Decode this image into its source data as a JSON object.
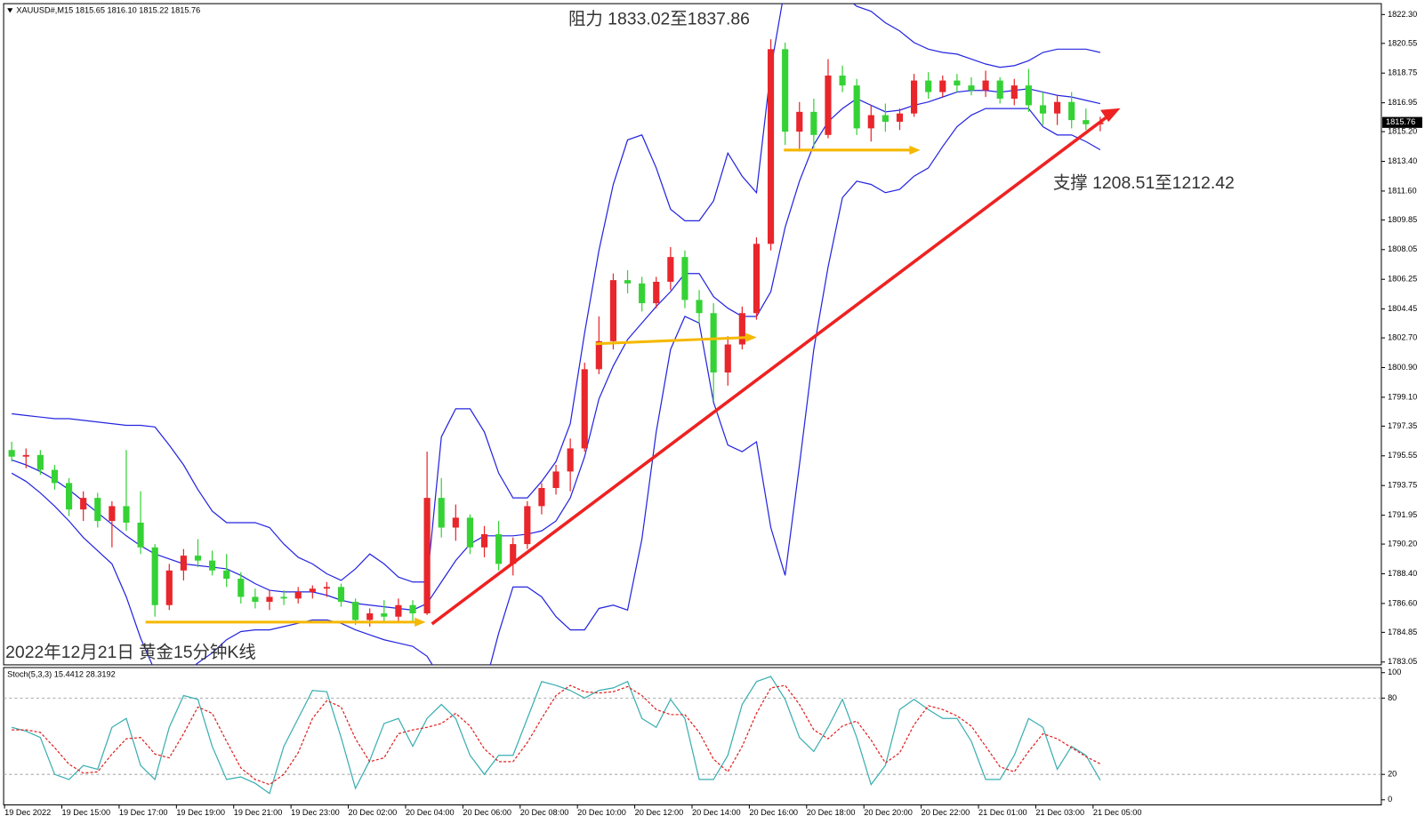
{
  "chart_data": [
    {
      "type": "candlestick",
      "header": "XAUUSD#,M15  1815.65 1816.10 1815.22 1815.76",
      "title": "2022年12月21日 黄金15分钟K线",
      "annotations": [
        "阻力 1833.02至1837.86",
        "支撑 1208.51至1212.42"
      ],
      "up_color": "#e8262b",
      "down_color": "#35d235",
      "band_color": "#2424e0",
      "ylim": [
        1782.88,
        1822.96
      ],
      "yticks": [
        {
          "value": 1822.3,
          "label": "1822.30"
        },
        1820.55,
        1818.75,
        1816.95,
        {
          "value": 1815.2,
          "label": "1815.20"
        },
        {
          "value": 1813.4,
          "label": "1813.40"
        },
        {
          "value": 1811.6,
          "label": "1811.60"
        },
        1809.85,
        1808.05,
        1806.25,
        1804.45,
        {
          "value": 1802.7,
          "label": "1802.70"
        },
        {
          "value": 1800.9,
          "label": "1800.90"
        },
        {
          "value": 1799.1,
          "label": "1799.10"
        },
        1797.35,
        1795.55,
        1793.75,
        1791.95,
        {
          "value": 1790.2,
          "label": "1790.20"
        },
        {
          "value": 1788.4,
          "label": "1788.40"
        },
        {
          "value": 1786.6,
          "label": "1786.60"
        },
        1784.85,
        1783.05
      ],
      "last_price": 1815.76,
      "categories": [
        "19 Dec 2022",
        null,
        null,
        null,
        "19 Dec 15:00",
        null,
        null,
        null,
        "19 Dec 17:00",
        null,
        null,
        null,
        "19 Dec 19:00",
        null,
        null,
        null,
        "19 Dec 21:00",
        null,
        null,
        null,
        "19 Dec 23:00",
        null,
        null,
        null,
        "20 Dec 02:00",
        null,
        null,
        null,
        "20 Dec 04:00",
        null,
        null,
        null,
        "20 Dec 06:00",
        null,
        null,
        null,
        "20 Dec 08:00",
        null,
        null,
        null,
        "20 Dec 10:00",
        null,
        null,
        null,
        "20 Dec 12:00",
        null,
        null,
        null,
        "20 Dec 14:00",
        null,
        null,
        null,
        "20 Dec 16:00",
        null,
        null,
        null,
        "20 Dec 18:00",
        null,
        null,
        null,
        "20 Dec 20:00",
        null,
        null,
        null,
        "20 Dec 22:00",
        null,
        null,
        null,
        "21 Dec 01:00",
        null,
        null,
        null,
        "21 Dec 03:00",
        null,
        null,
        null,
        "21 Dec 05:00"
      ],
      "candles": [
        [
          1795.9,
          1796.4,
          1795.2,
          1795.5
        ],
        [
          1795.5,
          1796.0,
          1794.8,
          1795.6
        ],
        [
          1795.6,
          1795.9,
          1794.4,
          1794.7
        ],
        [
          1794.7,
          1795.0,
          1793.5,
          1793.9
        ],
        [
          1793.9,
          1794.2,
          1791.9,
          1792.3
        ],
        [
          1792.3,
          1793.4,
          1791.6,
          1793.0
        ],
        [
          1793.0,
          1793.3,
          1791.2,
          1791.6
        ],
        [
          1791.6,
          1792.8,
          1790.0,
          1792.5
        ],
        [
          1792.5,
          1795.9,
          1791.0,
          1791.5
        ],
        [
          1791.5,
          1793.4,
          1789.6,
          1790.0
        ],
        [
          1790.0,
          1790.2,
          1785.8,
          1786.5
        ],
        [
          1786.5,
          1789.0,
          1786.2,
          1788.6
        ],
        [
          1788.6,
          1789.9,
          1788.0,
          1789.5
        ],
        [
          1789.5,
          1790.5,
          1788.8,
          1789.2
        ],
        [
          1789.2,
          1789.8,
          1788.3,
          1788.6
        ],
        [
          1788.6,
          1789.6,
          1787.6,
          1788.1
        ],
        [
          1788.1,
          1788.5,
          1786.6,
          1787.0
        ],
        [
          1787.0,
          1787.5,
          1786.3,
          1786.7
        ],
        [
          1786.7,
          1787.4,
          1786.2,
          1787.0
        ],
        [
          1787.0,
          1787.4,
          1786.5,
          1786.9
        ],
        [
          1786.9,
          1787.6,
          1786.6,
          1787.3
        ],
        [
          1787.3,
          1787.7,
          1786.9,
          1787.5
        ],
        [
          1787.5,
          1787.9,
          1787.0,
          1787.6
        ],
        [
          1787.6,
          1787.8,
          1786.4,
          1786.7
        ],
        [
          1786.7,
          1786.9,
          1785.3,
          1785.6
        ],
        [
          1785.6,
          1786.3,
          1785.2,
          1786.0
        ],
        [
          1786.0,
          1786.8,
          1785.4,
          1785.8
        ],
        [
          1785.8,
          1786.9,
          1785.5,
          1786.5
        ],
        [
          1786.5,
          1786.8,
          1785.5,
          1786.0
        ],
        [
          1786.0,
          1795.8,
          1785.9,
          1793.0
        ],
        [
          1793.0,
          1794.2,
          1790.6,
          1791.2
        ],
        [
          1791.2,
          1792.6,
          1790.4,
          1791.8
        ],
        [
          1791.8,
          1792.0,
          1789.6,
          1790.0
        ],
        [
          1790.0,
          1791.3,
          1789.4,
          1790.8
        ],
        [
          1790.8,
          1791.6,
          1788.6,
          1789.0
        ],
        [
          1789.0,
          1790.6,
          1788.3,
          1790.2
        ],
        [
          1790.2,
          1792.8,
          1789.9,
          1792.5
        ],
        [
          1792.5,
          1793.9,
          1792.0,
          1793.6
        ],
        [
          1793.6,
          1795.0,
          1793.2,
          1794.6
        ],
        [
          1794.6,
          1796.6,
          1793.4,
          1796.0
        ],
        [
          1796.0,
          1801.2,
          1795.8,
          1800.8
        ],
        [
          1800.8,
          1804.0,
          1800.5,
          1802.5
        ],
        [
          1802.5,
          1806.6,
          1802.0,
          1806.2
        ],
        [
          1806.2,
          1806.8,
          1805.4,
          1806.0
        ],
        [
          1806.0,
          1806.4,
          1804.3,
          1804.8
        ],
        [
          1804.8,
          1806.4,
          1804.5,
          1806.1
        ],
        [
          1806.1,
          1808.2,
          1805.6,
          1807.6
        ],
        [
          1807.6,
          1808.0,
          1804.5,
          1805.0
        ],
        [
          1805.0,
          1805.6,
          1803.6,
          1804.2
        ],
        [
          1804.2,
          1804.8,
          1798.9,
          1800.6
        ],
        [
          1800.6,
          1802.8,
          1799.8,
          1802.3
        ],
        [
          1802.3,
          1804.6,
          1802.0,
          1804.2
        ],
        [
          1804.2,
          1808.8,
          1803.8,
          1808.4
        ],
        [
          1808.4,
          1820.8,
          1808.0,
          1820.2
        ],
        [
          1820.2,
          1820.6,
          1814.4,
          1815.2
        ],
        [
          1815.2,
          1817.0,
          1814.0,
          1816.4
        ],
        [
          1816.4,
          1817.2,
          1814.2,
          1815.0
        ],
        [
          1815.0,
          1819.6,
          1814.8,
          1818.6
        ],
        [
          1818.6,
          1819.2,
          1817.6,
          1818.0
        ],
        [
          1818.0,
          1818.4,
          1815.0,
          1815.4
        ],
        [
          1815.4,
          1816.8,
          1814.6,
          1816.2
        ],
        [
          1816.2,
          1816.9,
          1815.2,
          1815.8
        ],
        [
          1815.8,
          1816.6,
          1815.3,
          1816.3
        ],
        [
          1816.3,
          1818.7,
          1816.1,
          1818.3
        ],
        [
          1818.3,
          1818.8,
          1817.2,
          1817.6
        ],
        [
          1817.6,
          1818.6,
          1817.3,
          1818.3
        ],
        [
          1818.3,
          1818.7,
          1817.6,
          1818.0
        ],
        [
          1818.0,
          1818.5,
          1817.4,
          1817.7
        ],
        [
          1817.7,
          1818.9,
          1817.3,
          1818.3
        ],
        [
          1818.3,
          1818.5,
          1816.9,
          1817.2
        ],
        [
          1817.2,
          1818.4,
          1816.8,
          1818.0
        ],
        [
          1818.0,
          1819.0,
          1816.4,
          1816.8
        ],
        [
          1816.8,
          1817.6,
          1815.6,
          1816.3
        ],
        [
          1816.3,
          1817.4,
          1815.6,
          1817.0
        ],
        [
          1817.0,
          1817.6,
          1815.4,
          1815.9
        ],
        [
          1815.9,
          1816.6,
          1815.3,
          1815.65
        ],
        [
          1815.65,
          1816.1,
          1815.22,
          1815.76
        ]
      ],
      "bollinger": {
        "upper": [
          1798.1,
          1798.0,
          1797.9,
          1797.8,
          1797.8,
          1797.7,
          1797.6,
          1797.5,
          1797.4,
          1797.4,
          1797.3,
          1796.2,
          1795.0,
          1793.5,
          1792.2,
          1791.5,
          1791.5,
          1791.5,
          1791.2,
          1790.2,
          1789.4,
          1789.0,
          1788.4,
          1788.0,
          1788.7,
          1789.6,
          1789.0,
          1788.2,
          1787.9,
          1787.9,
          1796.7,
          1798.4,
          1798.4,
          1797.0,
          1794.5,
          1793.0,
          1793.0,
          1794.0,
          1795.2,
          1797.5,
          1803.0,
          1808.0,
          1812.0,
          1814.7,
          1815.0,
          1813.0,
          1810.5,
          1809.8,
          1809.8,
          1811.0,
          1813.9,
          1812.5,
          1811.5,
          1819.0,
          1824.0,
          1824.5,
          1824.0,
          1823.3,
          1823.5,
          1822.8,
          1822.5,
          1821.8,
          1821.3,
          1820.6,
          1820.2,
          1820.0,
          1819.9,
          1819.6,
          1819.3,
          1819.1,
          1819.2,
          1819.5,
          1820.0,
          1820.2,
          1820.2,
          1820.2,
          1820.0
        ],
        "middle": [
          1795.3,
          1795.0,
          1794.6,
          1794.1,
          1793.5,
          1792.8,
          1792.1,
          1791.4,
          1790.7,
          1790.1,
          1789.6,
          1789.3,
          1789.0,
          1788.9,
          1788.8,
          1788.7,
          1788.3,
          1787.8,
          1787.4,
          1787.3,
          1787.3,
          1787.3,
          1787.1,
          1786.8,
          1786.6,
          1786.5,
          1786.4,
          1786.3,
          1786.2,
          1786.6,
          1787.9,
          1789.2,
          1790.2,
          1790.7,
          1790.7,
          1790.7,
          1790.8,
          1791.0,
          1791.6,
          1793.0,
          1795.5,
          1799.0,
          1801.0,
          1802.6,
          1803.6,
          1804.6,
          1805.5,
          1806.6,
          1806.6,
          1805.2,
          1804.5,
          1804.0,
          1804.0,
          1805.5,
          1809.4,
          1812.2,
          1814.4,
          1815.8,
          1816.6,
          1817.2,
          1816.8,
          1816.4,
          1816.5,
          1816.8,
          1817.0,
          1817.3,
          1817.6,
          1817.7,
          1817.7,
          1817.6,
          1817.7,
          1817.8,
          1817.6,
          1817.4,
          1817.3,
          1817.1,
          1816.9
        ],
        "lower": [
          1794.5,
          1794.0,
          1793.3,
          1792.5,
          1791.6,
          1790.6,
          1789.8,
          1789.0,
          1787.0,
          1784.5,
          1782.5,
          1782.0,
          1782.3,
          1783.0,
          1783.6,
          1784.4,
          1784.9,
          1785.0,
          1785.0,
          1785.2,
          1785.4,
          1785.6,
          1785.6,
          1785.4,
          1785.0,
          1784.7,
          1784.4,
          1784.2,
          1784.0,
          1783.4,
          1782.0,
          1780.5,
          1780.5,
          1781.5,
          1784.8,
          1787.6,
          1787.6,
          1787.0,
          1785.8,
          1785.0,
          1785.0,
          1786.3,
          1786.5,
          1786.2,
          1790.5,
          1797.0,
          1802.0,
          1804.0,
          1803.6,
          1798.8,
          1796.2,
          1795.8,
          1796.4,
          1791.2,
          1788.3,
          1795.0,
          1802.0,
          1807.0,
          1811.2,
          1812.2,
          1812.0,
          1811.5,
          1811.7,
          1812.5,
          1813.0,
          1814.3,
          1815.5,
          1816.2,
          1816.6,
          1816.6,
          1816.6,
          1816.6,
          1815.5,
          1815.0,
          1815.0,
          1814.6,
          1814.1
        ]
      }
    },
    {
      "type": "line",
      "header": "Stoch(5,3,3) 15.4412 28.3192",
      "ylim": [
        -4,
        104
      ],
      "yticks": [
        0,
        20,
        80,
        100
      ],
      "grid": "dashed",
      "series": [
        {
          "color": "#3aaeb0",
          "dashed": false,
          "values": [
            57,
            54,
            49,
            20,
            16,
            27,
            24,
            57,
            64,
            27,
            16,
            57,
            82,
            79,
            42,
            16,
            18,
            13,
            5,
            42,
            64,
            86,
            85,
            49,
            9,
            31,
            60,
            64,
            42,
            64,
            75,
            64,
            35,
            20,
            35,
            35,
            64,
            93,
            90,
            86,
            80,
            86,
            88,
            93,
            64,
            57,
            79,
            64,
            16,
            16,
            35,
            75,
            93,
            97,
            79,
            49,
            38,
            57,
            79,
            49,
            12,
            27,
            71,
            79,
            71,
            64,
            64,
            46,
            16,
            16,
            35,
            64,
            57,
            24,
            42,
            35,
            15.4412
          ]
        },
        {
          "color": "#e02020",
          "dashed": true,
          "values": [
            55,
            55,
            53,
            41,
            28,
            21,
            22,
            36,
            48,
            49,
            36,
            33,
            52,
            73,
            68,
            46,
            25,
            16,
            12,
            20,
            37,
            64,
            78,
            73,
            48,
            30,
            33,
            52,
            55,
            57,
            60,
            68,
            58,
            40,
            30,
            30,
            45,
            64,
            82,
            90,
            85,
            84,
            85,
            89,
            82,
            71,
            67,
            67,
            53,
            32,
            22,
            42,
            68,
            88,
            90,
            75,
            55,
            48,
            58,
            62,
            47,
            29,
            37,
            59,
            74,
            71,
            66,
            58,
            42,
            26,
            22,
            38,
            52,
            48,
            41,
            34,
            28.3192
          ]
        }
      ]
    }
  ]
}
